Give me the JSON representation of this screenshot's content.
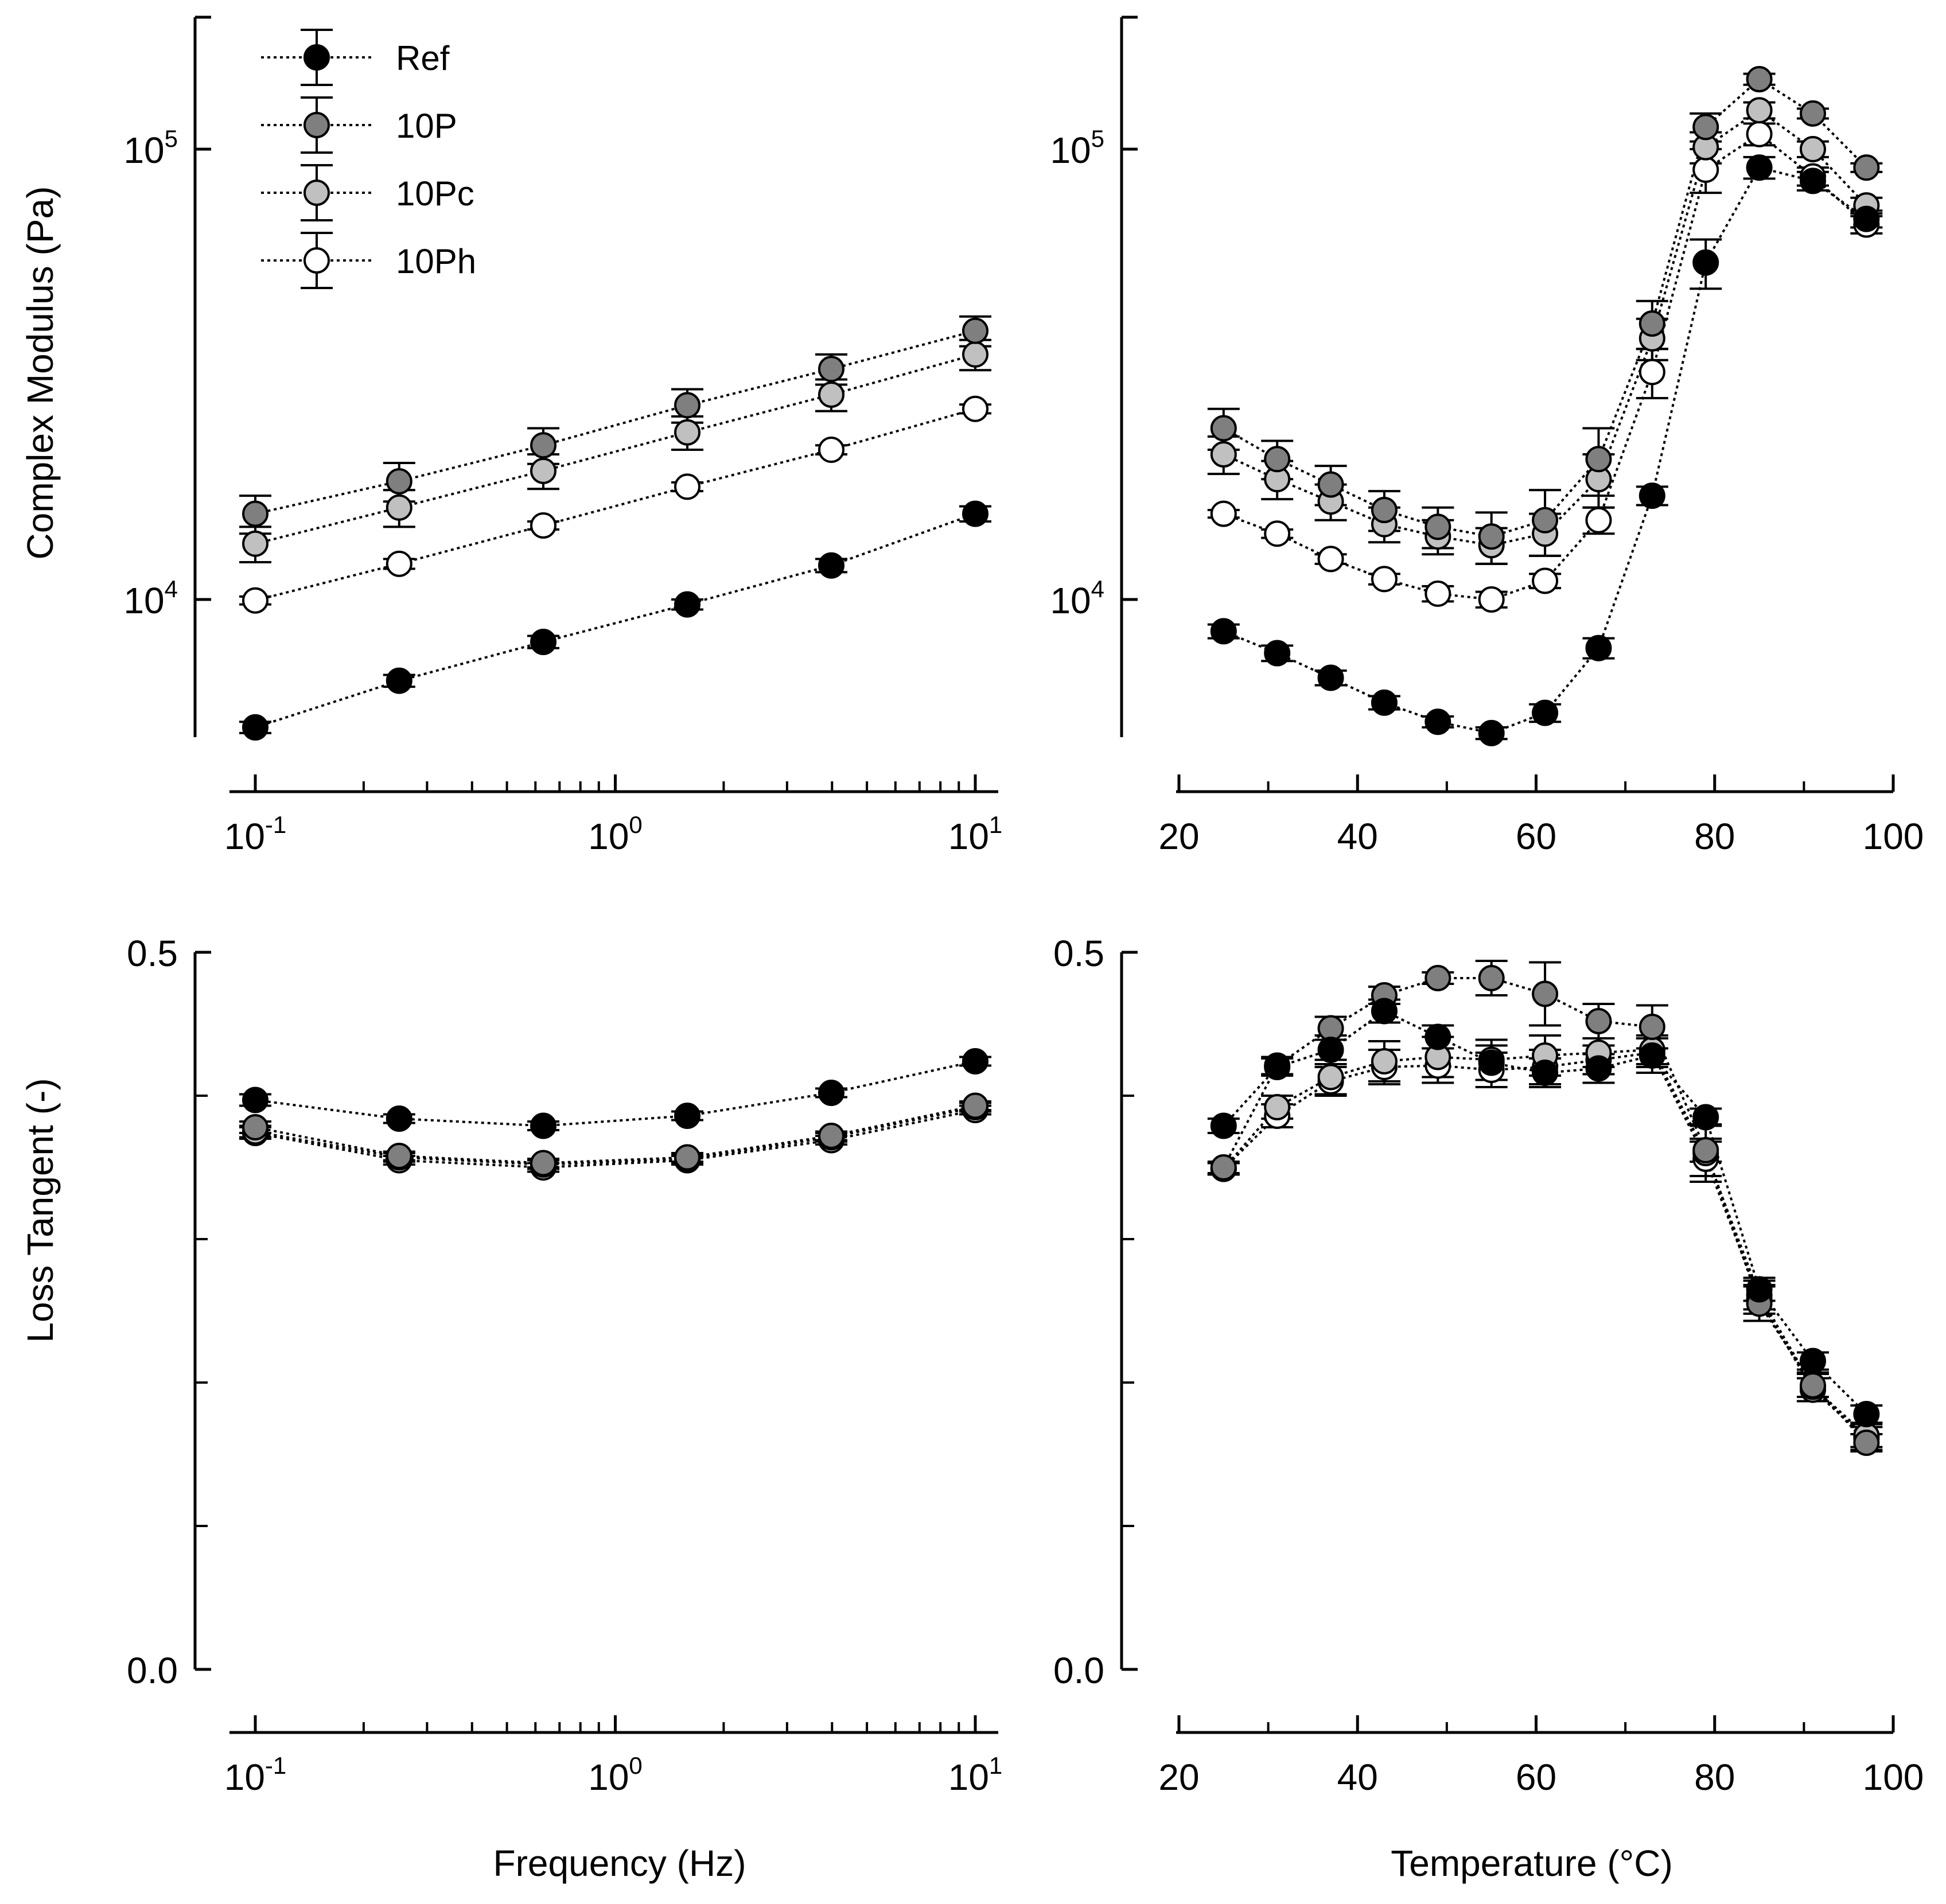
{
  "chart_data": [
    {
      "id": "modulus-frequency",
      "type": "scatter",
      "ylabel": "Complex Modulus (Pa)",
      "xscale": "log",
      "yscale": "log",
      "xlim": [
        0.1,
        10
      ],
      "ylim": [
        5000,
        190000
      ],
      "xticks": [
        "10-1",
        "100",
        "101"
      ],
      "yticks": [
        "104",
        "105"
      ],
      "x": [
        0.1,
        0.251,
        0.631,
        1.585,
        3.981,
        10
      ],
      "series": [
        {
          "name": "Ref",
          "values": [
            5200,
            6600,
            8050,
            9750,
            11900,
            15500
          ],
          "errors": [
            150,
            200,
            250,
            250,
            400,
            600
          ]
        },
        {
          "name": "10P",
          "values": [
            15500,
            18300,
            22000,
            27000,
            32500,
            39500
          ],
          "errors": [
            1500,
            1800,
            2000,
            2300,
            2500,
            3000
          ]
        },
        {
          "name": "10Pc",
          "values": [
            13300,
            16000,
            19300,
            23500,
            28500,
            35000
          ],
          "errors": [
            1200,
            1500,
            1700,
            2000,
            2300,
            2700
          ]
        },
        {
          "name": "10Ph",
          "values": [
            9950,
            12000,
            14600,
            17800,
            21500,
            26500
          ],
          "errors": [
            200,
            300,
            300,
            400,
            500,
            600
          ]
        }
      ]
    },
    {
      "id": "modulus-temperature",
      "type": "scatter",
      "xlim": [
        20,
        100
      ],
      "ylim": [
        5000,
        190000
      ],
      "xticks": [
        "20",
        "40",
        "60",
        "80",
        "100"
      ],
      "yticks": [
        "104",
        "105"
      ],
      "x": [
        25,
        31,
        37,
        43,
        49,
        55,
        61,
        67,
        73,
        79,
        85,
        91,
        97
      ],
      "series": [
        {
          "name": "Ref",
          "values": [
            8500,
            7600,
            6700,
            5900,
            5350,
            5050,
            5600,
            7800,
            17000,
            56000,
            91000,
            85000,
            70000
          ],
          "errors": [
            300,
            300,
            250,
            200,
            150,
            150,
            250,
            400,
            800,
            7000,
            5000,
            4000,
            3000
          ]
        },
        {
          "name": "10P",
          "values": [
            24000,
            20500,
            18000,
            15800,
            14500,
            13800,
            15000,
            20500,
            41000,
            112000,
            143000,
            120000,
            91000
          ],
          "errors": [
            2500,
            2000,
            1800,
            1600,
            1500,
            1800,
            2500,
            3500,
            5000,
            8000,
            4000,
            3000,
            2000
          ]
        },
        {
          "name": "10Pc",
          "values": [
            21000,
            18500,
            16500,
            14700,
            13800,
            13200,
            14000,
            18500,
            38000,
            101000,
            122000,
            100000,
            75000
          ],
          "errors": [
            2000,
            1800,
            1500,
            1300,
            1200,
            1200,
            1500,
            2500,
            4000,
            8000,
            5000,
            4000,
            3000
          ]
        },
        {
          "name": "10Ph",
          "values": [
            15500,
            14000,
            12300,
            11100,
            10300,
            10000,
            11000,
            15000,
            32000,
            90000,
            108000,
            87000,
            68000
          ],
          "errors": [
            300,
            300,
            300,
            300,
            400,
            400,
            400,
            1000,
            4000,
            10000,
            6000,
            4000,
            3000
          ]
        }
      ]
    },
    {
      "id": "losstangent-frequency",
      "type": "scatter",
      "xlabel": "Frequency (Hz)",
      "ylabel": "Loss Tangent (-)",
      "xscale": "log",
      "xlim": [
        0.1,
        10
      ],
      "ylim": [
        0,
        0.5
      ],
      "xticks": [
        "10-1",
        "100",
        "101"
      ],
      "yticks": [
        "0.0",
        "0.5"
      ],
      "x": [
        0.1,
        0.251,
        0.631,
        1.585,
        3.981,
        10
      ],
      "series": [
        {
          "name": "Ref",
          "values": [
            0.397,
            0.384,
            0.379,
            0.386,
            0.402,
            0.424
          ],
          "errors": [
            0.004,
            0.003,
            0.003,
            0.003,
            0.003,
            0.003
          ]
        },
        {
          "name": "10P",
          "values": [
            0.378,
            0.358,
            0.353,
            0.357,
            0.372,
            0.393
          ],
          "errors": [
            0.004,
            0.003,
            0.003,
            0.003,
            0.003,
            0.003
          ]
        },
        {
          "name": "10Pc",
          "values": [
            0.375,
            0.357,
            0.352,
            0.356,
            0.371,
            0.392
          ],
          "errors": [
            0.004,
            0.003,
            0.003,
            0.003,
            0.003,
            0.003
          ]
        },
        {
          "name": "10Ph",
          "values": [
            0.374,
            0.355,
            0.35,
            0.355,
            0.369,
            0.39
          ],
          "errors": [
            0.004,
            0.003,
            0.003,
            0.003,
            0.003,
            0.003
          ]
        }
      ]
    },
    {
      "id": "losstangent-temperature",
      "type": "scatter",
      "xlabel": "Temperature (°C)",
      "xlim": [
        20,
        100
      ],
      "ylim": [
        0,
        0.5
      ],
      "xticks": [
        "20",
        "40",
        "60",
        "80",
        "100"
      ],
      "yticks": [
        "0.0",
        "0.5"
      ],
      "x": [
        25,
        31,
        37,
        43,
        49,
        55,
        61,
        67,
        73,
        79,
        85,
        91,
        97
      ],
      "series": [
        {
          "name": "Ref",
          "values": [
            0.379,
            0.42,
            0.432,
            0.459,
            0.441,
            0.423,
            0.416,
            0.419,
            0.428,
            0.385,
            0.265,
            0.215,
            0.178
          ],
          "errors": [
            0.005,
            0.006,
            0.01,
            0.008,
            0.008,
            0.012,
            0.01,
            0.01,
            0.012,
            0.006,
            0.008,
            0.006,
            0.006
          ]
        },
        {
          "name": "10P",
          "values": [
            0.35,
            0.421,
            0.447,
            0.47,
            0.482,
            0.482,
            0.471,
            0.452,
            0.448,
            0.362,
            0.255,
            0.198,
            0.158
          ],
          "errors": [
            0.004,
            0.006,
            0.008,
            0.006,
            0.004,
            0.012,
            0.022,
            0.012,
            0.015,
            0.008,
            0.012,
            0.008,
            0.006
          ]
        },
        {
          "name": "10Pc",
          "values": [
            0.349,
            0.392,
            0.413,
            0.424,
            0.427,
            0.425,
            0.428,
            0.43,
            0.432,
            0.36,
            0.261,
            0.197,
            0.163
          ],
          "errors": [
            0.004,
            0.008,
            0.012,
            0.014,
            0.014,
            0.014,
            0.014,
            0.01,
            0.01,
            0.02,
            0.01,
            0.01,
            0.008
          ]
        },
        {
          "name": "10Ph",
          "values": [
            0.349,
            0.386,
            0.41,
            0.42,
            0.421,
            0.418,
            0.42,
            0.425,
            0.43,
            0.356,
            0.258,
            0.195,
            0.161
          ],
          "errors": [
            0.004,
            0.008,
            0.01,
            0.012,
            0.012,
            0.012,
            0.012,
            0.01,
            0.01,
            0.012,
            0.01,
            0.008,
            0.008
          ]
        }
      ]
    }
  ],
  "legend": {
    "position": "top-left of first panel",
    "entries": [
      {
        "name": "Ref",
        "fill": "#000000"
      },
      {
        "name": "10P",
        "fill": "#7f7f7f"
      },
      {
        "name": "10Pc",
        "fill": "#c0c0c0"
      },
      {
        "name": "10Ph",
        "fill": "#ffffff"
      }
    ]
  },
  "colors": {
    "Ref": "#000000",
    "10P": "#7f7f7f",
    "10Pc": "#c0c0c0",
    "10Ph": "#ffffff",
    "stroke": "#000000"
  }
}
